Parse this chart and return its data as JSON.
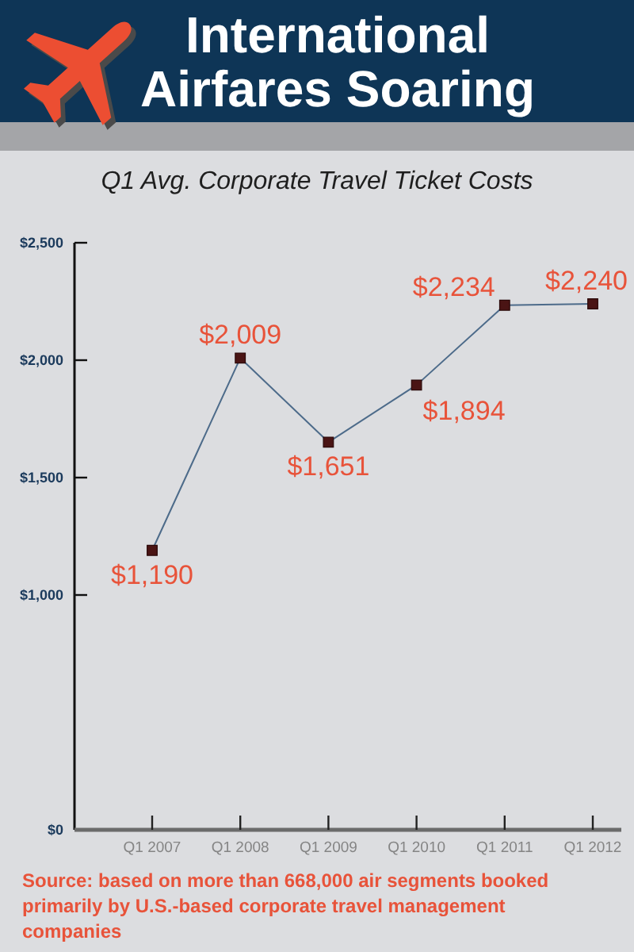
{
  "chart_data": {
    "type": "line",
    "title": "International Airfares Soaring",
    "subtitle": "Q1 Avg. Corporate Travel Ticket Costs",
    "categories": [
      "Q1 2007",
      "Q1 2008",
      "Q1 2009",
      "Q1 2010",
      "Q1 2011",
      "Q1 2012"
    ],
    "values": [
      1190,
      2009,
      1651,
      1894,
      2234,
      2240
    ],
    "value_labels": [
      "$1,190",
      "$2,009",
      "$1,651",
      "$1,894",
      "$2,234",
      "$2,240"
    ],
    "color": "#4d6b8a",
    "marker": "square",
    "line_style": "solid",
    "ylim": [
      0,
      2500
    ],
    "yticks": [
      {
        "value": 0,
        "label": "$0"
      },
      {
        "value": 1000,
        "label": "$1,000"
      },
      {
        "value": 1500,
        "label": "$1,500"
      },
      {
        "value": 2000,
        "label": "$2,000"
      },
      {
        "value": 2500,
        "label": "$2,500"
      }
    ],
    "annotations": [
      "Source: based on more than 668,000 air segments booked primarily by U.S.-based corporate travel management companies"
    ]
  }
}
